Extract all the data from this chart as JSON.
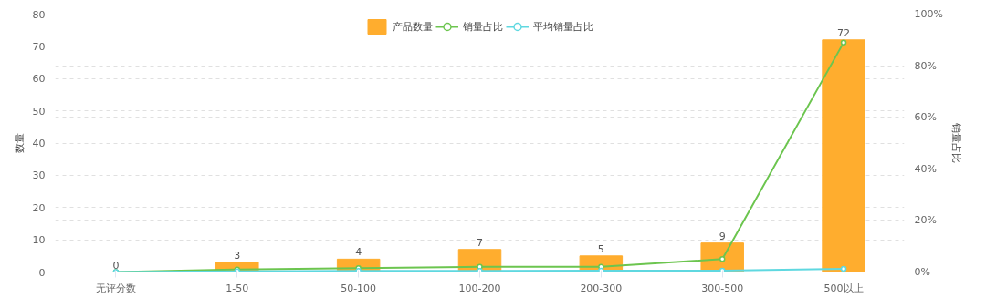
{
  "chart_data": {
    "type": "bar",
    "categories": [
      "无评分数",
      "1-50",
      "50-100",
      "100-200",
      "200-300",
      "300-500",
      "500以上"
    ],
    "ylabel": "数量",
    "y2label": "销量占比",
    "series": [
      {
        "name": "产品数量",
        "color": "#ffad2e",
        "values": [
          0,
          3,
          4,
          7,
          5,
          9,
          72
        ],
        "value_labels": [
          "0",
          "3",
          "4",
          "7",
          "5",
          "9",
          "72"
        ]
      },
      {
        "name": "销量占比",
        "type": "line",
        "axis": "y2",
        "color": "#6cc54f",
        "values": [
          0,
          1,
          1.5,
          2,
          2,
          5,
          89
        ]
      },
      {
        "name": "平均销量占比",
        "type": "line",
        "axis": "y2",
        "color": "#5fd8e0",
        "values": [
          0,
          0.3,
          0.4,
          0.4,
          0.5,
          0.5,
          1.2
        ]
      }
    ],
    "ylim": [
      0,
      80
    ],
    "yticks": [
      0,
      10,
      20,
      30,
      40,
      50,
      60,
      70,
      80
    ],
    "y2lim": [
      0,
      100
    ],
    "y2ticks": [
      {
        "value": 0,
        "label": "0%"
      },
      {
        "value": 20,
        "label": "20%"
      },
      {
        "value": 40,
        "label": "40%"
      },
      {
        "value": 60,
        "label": "60%"
      },
      {
        "value": 80,
        "label": "80%"
      },
      {
        "value": 100,
        "label": "100%"
      }
    ],
    "grid": "y",
    "legend": "top",
    "marker": "circle",
    "line_style": "solid"
  }
}
